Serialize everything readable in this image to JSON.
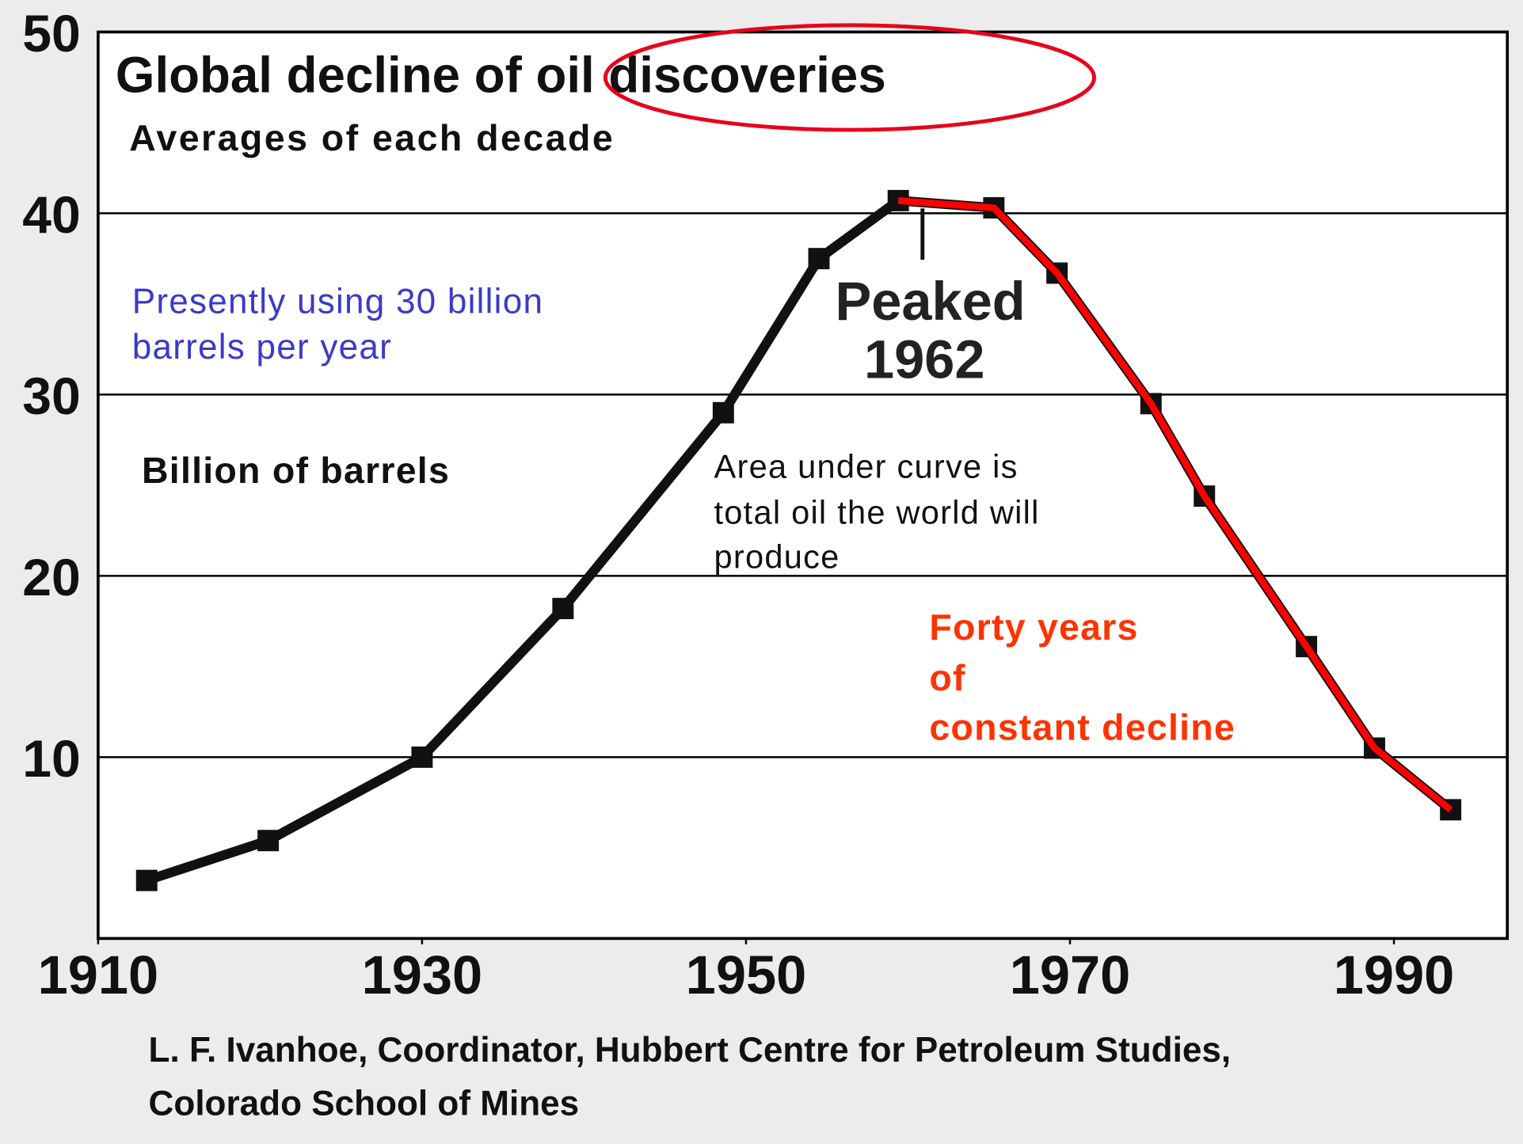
{
  "chart_data": {
    "type": "line",
    "title": "Global decline of oil discoveries",
    "subtitle": "Averages of each decade",
    "y_label": "Billion of barrels",
    "note_usage": [
      "Presently using 30 billion",
      "barrels per year"
    ],
    "note_peak": [
      "Peaked",
      "1962"
    ],
    "note_area": [
      "Area under curve is",
      "total oil the world will",
      "produce"
    ],
    "note_decline": [
      "Forty years",
      "of",
      "constant decline"
    ],
    "source": [
      "L. F. Ivanhoe, Coordinator, Hubbert Centre for Petroleum Studies,",
      "Colorado School of Mines"
    ],
    "x": [
      1913,
      1920.5,
      1930,
      1938.7,
      1948.6,
      1954.5,
      1959.4,
      1965.3,
      1969.2,
      1975,
      1978.3,
      1984.6,
      1988.8,
      1993.5
    ],
    "series": [
      {
        "color": "#111111",
        "values": [
          3.2,
          5.4,
          10,
          18.2,
          29,
          37.5,
          40.7,
          40.3,
          36.7,
          29.5,
          24.4,
          16.1,
          10.5,
          7.1
        ]
      },
      {
        "color": "#ff0000",
        "values": [
          null,
          null,
          null,
          null,
          null,
          null,
          40.7,
          40.3,
          36.7,
          29.5,
          24.4,
          16.1,
          10.5,
          7.1
        ]
      }
    ],
    "xlim": [
      1910,
      1997
    ],
    "ylim": [
      0,
      50
    ],
    "xticks": [
      1910,
      1930,
      1950,
      1970,
      1990
    ],
    "yticks": [
      10,
      20,
      30,
      40,
      50
    ],
    "grid": true
  }
}
